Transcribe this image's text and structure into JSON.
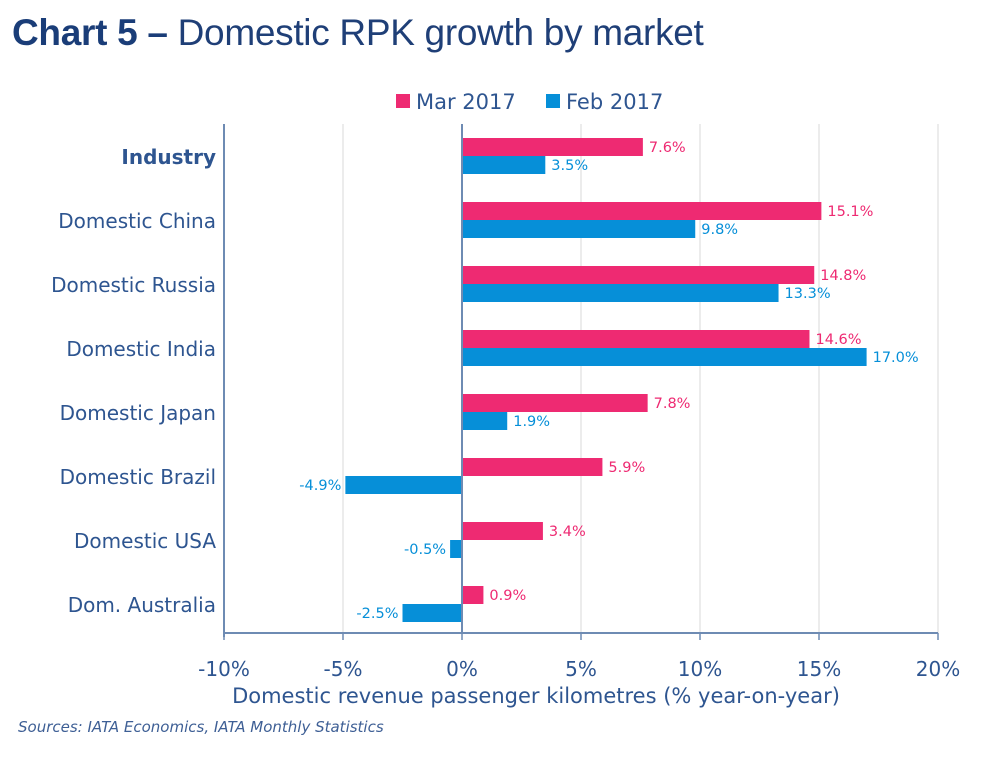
{
  "header": {
    "title_bold": "Chart 5 –",
    "title_rest": " Domestic RPK growth by market"
  },
  "source": "Sources: IATA Economics, IATA Monthly Statistics",
  "colors": {
    "mar": "#ee2a72",
    "feb": "#068fd8",
    "axis": "#6e8bb3",
    "text": "#2e5590",
    "grid": "#e6e6e6"
  },
  "chart_data": {
    "type": "bar",
    "orientation": "horizontal",
    "title": "Chart 5 – Domestic RPK growth by market",
    "xlabel": "Domestic revenue passenger kilometres (% year-on-year)",
    "ylabel": "",
    "xlim": [
      -10,
      20
    ],
    "xticks": [
      -10,
      -5,
      0,
      5,
      10,
      15,
      20
    ],
    "xtick_labels": [
      "-10%",
      "-5%",
      "0%",
      "5%",
      "10%",
      "15%",
      "20%"
    ],
    "grid": "vertical",
    "legend_position": "top-center",
    "categories": [
      "Industry",
      "Domestic China",
      "Domestic Russia",
      "Domestic India",
      "Domestic Japan",
      "Domestic Brazil",
      "Domestic USA",
      "Dom. Australia"
    ],
    "bold_categories": [
      "Industry"
    ],
    "series": [
      {
        "name": "Mar 2017",
        "key": "mar",
        "values": [
          7.6,
          15.1,
          14.8,
          14.6,
          7.8,
          5.9,
          3.4,
          0.9
        ],
        "labels": [
          "7.6%",
          "15.1%",
          "14.8%",
          "14.6%",
          "7.8%",
          "5.9%",
          "3.4%",
          "0.9%"
        ]
      },
      {
        "name": "Feb 2017",
        "key": "feb",
        "values": [
          3.5,
          9.8,
          13.3,
          17.0,
          1.9,
          -4.9,
          -0.5,
          -2.5
        ],
        "labels": [
          "3.5%",
          "9.8%",
          "13.3%",
          "17.0%",
          "1.9%",
          "-4.9%",
          "-0.5%",
          "-2.5%"
        ]
      }
    ]
  }
}
